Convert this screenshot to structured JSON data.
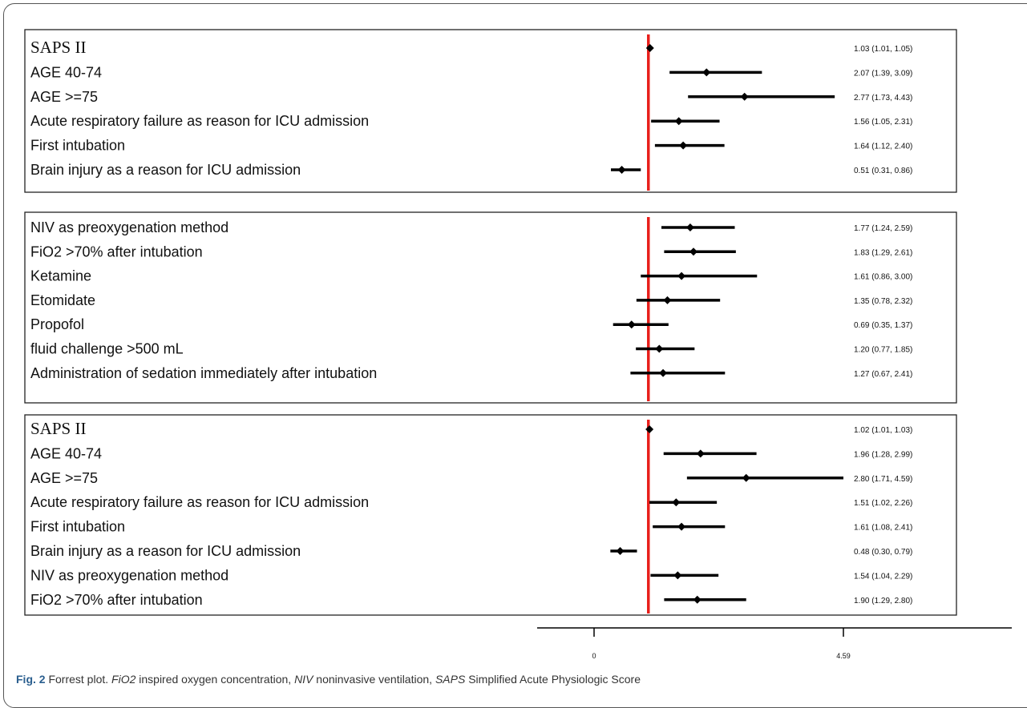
{
  "chart_data": {
    "type": "forest",
    "reference_value": 1,
    "x_axis": {
      "ticks": [
        {
          "value": 0,
          "label": "0"
        },
        {
          "value": 4.59,
          "label": "4.59"
        }
      ]
    },
    "panels": [
      {
        "rows": [
          {
            "label": "SAPS II",
            "estimate": 1.03,
            "lower": 1.01,
            "upper": 1.05,
            "ci_text": "1.03 (1.01, 1.05)"
          },
          {
            "label": "AGE 40-74",
            "estimate": 2.07,
            "lower": 1.39,
            "upper": 3.09,
            "ci_text": "2.07 (1.39, 3.09)"
          },
          {
            "label": "AGE >=75",
            "estimate": 2.77,
            "lower": 1.73,
            "upper": 4.43,
            "ci_text": "2.77 (1.73, 4.43)"
          },
          {
            "label": "Acute respiratory failure as reason for ICU admission",
            "estimate": 1.56,
            "lower": 1.05,
            "upper": 2.31,
            "ci_text": "1.56 (1.05, 2.31)"
          },
          {
            "label": "First intubation",
            "estimate": 1.64,
            "lower": 1.12,
            "upper": 2.4,
            "ci_text": "1.64 (1.12, 2.40)"
          },
          {
            "label": "Brain injury as a reason for ICU admission",
            "estimate": 0.51,
            "lower": 0.31,
            "upper": 0.86,
            "ci_text": "0.51 (0.31, 0.86)"
          }
        ]
      },
      {
        "rows": [
          {
            "label": "NIV as preoxygenation method",
            "estimate": 1.77,
            "lower": 1.24,
            "upper": 2.59,
            "ci_text": "1.77 (1.24, 2.59)"
          },
          {
            "label": "FiO2 >70% after intubation",
            "estimate": 1.83,
            "lower": 1.29,
            "upper": 2.61,
            "ci_text": "1.83 (1.29, 2.61)"
          },
          {
            "label": "Ketamine",
            "estimate": 1.61,
            "lower": 0.86,
            "upper": 3.0,
            "ci_text": "1.61 (0.86, 3.00)"
          },
          {
            "label": "Etomidate",
            "estimate": 1.35,
            "lower": 0.78,
            "upper": 2.32,
            "ci_text": "1.35 (0.78, 2.32)"
          },
          {
            "label": "Propofol",
            "estimate": 0.69,
            "lower": 0.35,
            "upper": 1.37,
            "ci_text": "0.69 (0.35, 1.37)"
          },
          {
            "label": "fluid challenge >500 mL",
            "estimate": 1.2,
            "lower": 0.77,
            "upper": 1.85,
            "ci_text": "1.20 (0.77, 1.85)"
          },
          {
            "label": "Administration of sedation immediately after intubation",
            "estimate": 1.27,
            "lower": 0.67,
            "upper": 2.41,
            "ci_text": "1.27 (0.67, 2.41)"
          }
        ]
      },
      {
        "rows": [
          {
            "label": "SAPS II",
            "estimate": 1.02,
            "lower": 1.01,
            "upper": 1.03,
            "ci_text": "1.02 (1.01, 1.03)"
          },
          {
            "label": "AGE 40-74",
            "estimate": 1.96,
            "lower": 1.28,
            "upper": 2.99,
            "ci_text": "1.96 (1.28, 2.99)"
          },
          {
            "label": "AGE >=75",
            "estimate": 2.8,
            "lower": 1.71,
            "upper": 4.59,
            "ci_text": "2.80 (1.71, 4.59)"
          },
          {
            "label": "Acute respiratory failure as reason for ICU admission",
            "estimate": 1.51,
            "lower": 1.02,
            "upper": 2.26,
            "ci_text": "1.51 (1.02, 2.26)"
          },
          {
            "label": "First intubation",
            "estimate": 1.61,
            "lower": 1.08,
            "upper": 2.41,
            "ci_text": "1.61 (1.08, 2.41)"
          },
          {
            "label": "Brain injury as a reason for ICU admission",
            "estimate": 0.48,
            "lower": 0.3,
            "upper": 0.79,
            "ci_text": "0.48 (0.30, 0.79)"
          },
          {
            "label": "NIV as preoxygenation method",
            "estimate": 1.54,
            "lower": 1.04,
            "upper": 2.29,
            "ci_text": "1.54 (1.04, 2.29)"
          },
          {
            "label": "FiO2 >70% after intubation",
            "estimate": 1.9,
            "lower": 1.29,
            "upper": 2.8,
            "ci_text": "1.90 (1.29, 2.80)"
          }
        ]
      }
    ],
    "colors": {
      "reference_line": "#e8201c",
      "ci": "#000000",
      "caption_label": "#2b5f8f"
    }
  },
  "caption": {
    "label": "Fig. 2",
    "segments": [
      {
        "text": " Forrest plot. ",
        "italic": false
      },
      {
        "text": "FiO2",
        "italic": true
      },
      {
        "text": " inspired oxygen concentration, ",
        "italic": false
      },
      {
        "text": "NIV",
        "italic": true
      },
      {
        "text": " noninvasive ventilation, ",
        "italic": false
      },
      {
        "text": "SAPS",
        "italic": true
      },
      {
        "text": " Simplified Acute Physiologic Score",
        "italic": false
      }
    ]
  }
}
